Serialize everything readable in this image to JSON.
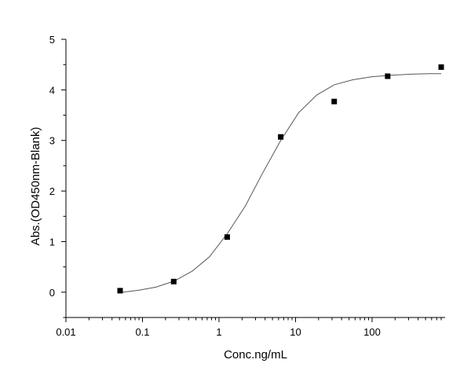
{
  "chart_data": {
    "type": "scatter",
    "title": "",
    "xlabel": "Conc.ng/mL",
    "ylabel": "Abs.(OD450nm-Blank)",
    "xscale": "log",
    "xlim": [
      0.01,
      900
    ],
    "ylim": [
      -0.5,
      5
    ],
    "grid": false,
    "legend": "none",
    "x_ticks": [
      {
        "value": 0.01,
        "label": "0.01"
      },
      {
        "value": 0.1,
        "label": "0.1"
      },
      {
        "value": 1,
        "label": "1"
      },
      {
        "value": 10,
        "label": "10"
      },
      {
        "value": 100,
        "label": "100"
      }
    ],
    "y_ticks": [
      {
        "value": 0,
        "label": "0"
      },
      {
        "value": 1,
        "label": "1"
      },
      {
        "value": 2,
        "label": "2"
      },
      {
        "value": 3,
        "label": "3"
      },
      {
        "value": 4,
        "label": "4"
      },
      {
        "value": 5,
        "label": "5"
      }
    ],
    "series": [
      {
        "type": "scatter",
        "marker": "square",
        "color": "#000000",
        "points": [
          {
            "x": 0.051,
            "y": 0.03
          },
          {
            "x": 0.256,
            "y": 0.21
          },
          {
            "x": 1.28,
            "y": 1.09
          },
          {
            "x": 6.4,
            "y": 3.07
          },
          {
            "x": 32,
            "y": 3.77
          },
          {
            "x": 160,
            "y": 4.27
          },
          {
            "x": 800,
            "y": 4.45
          }
        ]
      },
      {
        "type": "line",
        "color": "#555555",
        "fit": "4PL",
        "points": [
          {
            "x": 0.055,
            "y": 0.0
          },
          {
            "x": 0.09,
            "y": 0.04
          },
          {
            "x": 0.15,
            "y": 0.1
          },
          {
            "x": 0.26,
            "y": 0.22
          },
          {
            "x": 0.45,
            "y": 0.42
          },
          {
            "x": 0.75,
            "y": 0.7
          },
          {
            "x": 1.3,
            "y": 1.17
          },
          {
            "x": 2.2,
            "y": 1.7
          },
          {
            "x": 3.7,
            "y": 2.35
          },
          {
            "x": 6.4,
            "y": 3.0
          },
          {
            "x": 11,
            "y": 3.55
          },
          {
            "x": 19,
            "y": 3.9
          },
          {
            "x": 32,
            "y": 4.1
          },
          {
            "x": 56,
            "y": 4.2
          },
          {
            "x": 100,
            "y": 4.26
          },
          {
            "x": 180,
            "y": 4.29
          },
          {
            "x": 320,
            "y": 4.31
          },
          {
            "x": 560,
            "y": 4.32
          },
          {
            "x": 800,
            "y": 4.32
          }
        ]
      }
    ]
  }
}
